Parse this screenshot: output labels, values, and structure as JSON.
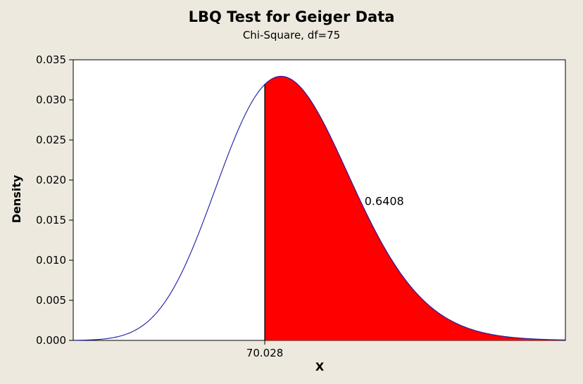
{
  "chart_data": {
    "type": "area",
    "title": "LBQ Test for Geiger Data",
    "subtitle": "Chi-Square, df=75",
    "xlabel": "X",
    "ylabel": "Density",
    "distribution": "chi-square",
    "df": 75,
    "xlim": [
      35,
      125
    ],
    "ylim": [
      0.0,
      0.035
    ],
    "yticks": [
      "0.000",
      "0.005",
      "0.010",
      "0.015",
      "0.020",
      "0.025",
      "0.030",
      "0.035"
    ],
    "critical_value": 70.028,
    "critical_label": "70.028",
    "shaded_region": "right-tail",
    "shaded_area_label": "0.6408",
    "colors": {
      "curve": "#1a1aa8",
      "shade": "#ff0000",
      "plot_bg": "#ffffff",
      "outer_bg": "#ede9df"
    }
  }
}
